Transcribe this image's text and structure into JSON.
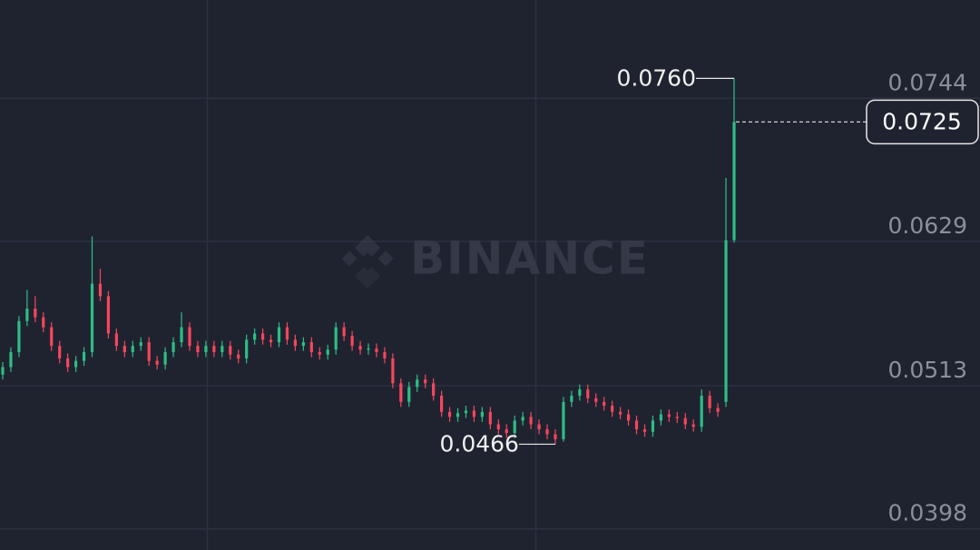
{
  "chart_data": {
    "type": "candlestick",
    "watermark": "BINANCE",
    "up_color": "#2ebd85",
    "down_color": "#f6465d",
    "ylim": [
      0.0381,
      0.0823
    ],
    "yticks": [
      0.0744,
      0.0629,
      0.0513,
      0.0398
    ],
    "grid": true,
    "open": [
      0.0522,
      0.0528,
      0.054,
      0.0565,
      0.0575,
      0.0568,
      0.056,
      0.0545,
      0.0535,
      0.0528,
      0.0533,
      0.054,
      0.0595,
      0.0585,
      0.0555,
      0.0545,
      0.054,
      0.0545,
      0.0548,
      0.0533,
      0.053,
      0.054,
      0.0548,
      0.056,
      0.0545,
      0.054,
      0.0545,
      0.054,
      0.0545,
      0.0538,
      0.0535,
      0.055,
      0.0555,
      0.055,
      0.0548,
      0.056,
      0.055,
      0.0545,
      0.0548,
      0.054,
      0.0538,
      0.0542,
      0.056,
      0.0553,
      0.0545,
      0.0542,
      0.0543,
      0.054,
      0.0535,
      0.0515,
      0.05,
      0.0512,
      0.0518,
      0.0515,
      0.0505,
      0.0492,
      0.0488,
      0.0491,
      0.0493,
      0.0488,
      0.0492,
      0.0482,
      0.0478,
      0.0475,
      0.0485,
      0.0488,
      0.0482,
      0.0478,
      0.0474,
      0.047,
      0.05,
      0.0505,
      0.051,
      0.0503,
      0.05,
      0.0497,
      0.0492,
      0.049,
      0.0485,
      0.0478,
      0.0476,
      0.0485,
      0.049,
      0.0488,
      0.0487,
      0.0482,
      0.048,
      0.0505,
      0.0495,
      0.05,
      0.063
    ],
    "high": [
      0.0532,
      0.0544,
      0.0569,
      0.059,
      0.0585,
      0.0572,
      0.0564,
      0.0549,
      0.0539,
      0.0537,
      0.0544,
      0.0633,
      0.0607,
      0.0589,
      0.0559,
      0.0549,
      0.0549,
      0.0552,
      0.0552,
      0.0537,
      0.0544,
      0.0552,
      0.0572,
      0.0564,
      0.0549,
      0.0549,
      0.0549,
      0.0549,
      0.0549,
      0.0542,
      0.0554,
      0.0559,
      0.0559,
      0.0554,
      0.0564,
      0.0564,
      0.0554,
      0.0552,
      0.0552,
      0.0544,
      0.0546,
      0.0564,
      0.0564,
      0.0557,
      0.0549,
      0.0547,
      0.0547,
      0.0544,
      0.0539,
      0.0519,
      0.0516,
      0.0522,
      0.0522,
      0.0519,
      0.0509,
      0.0496,
      0.0495,
      0.0497,
      0.0497,
      0.0496,
      0.0496,
      0.0486,
      0.0482,
      0.0489,
      0.0492,
      0.0492,
      0.0486,
      0.0482,
      0.0478,
      0.0504,
      0.0509,
      0.0514,
      0.0514,
      0.0507,
      0.0504,
      0.0501,
      0.0496,
      0.0494,
      0.0489,
      0.0482,
      0.0489,
      0.0494,
      0.0494,
      0.0492,
      0.0491,
      0.0486,
      0.051,
      0.0509,
      0.0499,
      0.068,
      0.076
    ],
    "low": [
      0.0518,
      0.0524,
      0.0536,
      0.0561,
      0.0564,
      0.0556,
      0.0541,
      0.0531,
      0.0524,
      0.0524,
      0.0529,
      0.0536,
      0.0581,
      0.0551,
      0.0541,
      0.0536,
      0.0536,
      0.0541,
      0.0529,
      0.0526,
      0.0526,
      0.0536,
      0.0544,
      0.0541,
      0.0536,
      0.0536,
      0.0536,
      0.0536,
      0.0534,
      0.0531,
      0.0531,
      0.0546,
      0.0546,
      0.0544,
      0.0544,
      0.0546,
      0.0541,
      0.0541,
      0.0536,
      0.0534,
      0.0534,
      0.0538,
      0.0549,
      0.0541,
      0.0538,
      0.0538,
      0.0536,
      0.0531,
      0.0511,
      0.0496,
      0.0496,
      0.0508,
      0.0511,
      0.0501,
      0.0488,
      0.0484,
      0.0484,
      0.0487,
      0.0484,
      0.0484,
      0.0478,
      0.0474,
      0.0471,
      0.0471,
      0.0481,
      0.0478,
      0.0474,
      0.047,
      0.0466,
      0.0468,
      0.0496,
      0.0501,
      0.0499,
      0.0496,
      0.0493,
      0.0488,
      0.0486,
      0.0481,
      0.0474,
      0.0472,
      0.0472,
      0.0481,
      0.0484,
      0.0483,
      0.0478,
      0.0476,
      0.0476,
      0.0491,
      0.0488,
      0.0496,
      0.0628
    ],
    "close": [
      0.0528,
      0.054,
      0.0565,
      0.0575,
      0.0568,
      0.056,
      0.0545,
      0.0535,
      0.0528,
      0.0533,
      0.054,
      0.0595,
      0.0585,
      0.0555,
      0.0545,
      0.054,
      0.0545,
      0.0548,
      0.0533,
      0.053,
      0.054,
      0.0548,
      0.056,
      0.0545,
      0.054,
      0.0545,
      0.054,
      0.0545,
      0.0538,
      0.0535,
      0.055,
      0.0555,
      0.055,
      0.0548,
      0.056,
      0.055,
      0.0545,
      0.0548,
      0.054,
      0.0538,
      0.0542,
      0.056,
      0.0553,
      0.0545,
      0.0542,
      0.0543,
      0.054,
      0.0535,
      0.0515,
      0.05,
      0.0512,
      0.0518,
      0.0515,
      0.0505,
      0.0492,
      0.0488,
      0.0491,
      0.0493,
      0.0488,
      0.0492,
      0.0482,
      0.0478,
      0.0475,
      0.0485,
      0.0488,
      0.0482,
      0.0478,
      0.0474,
      0.047,
      0.05,
      0.0505,
      0.051,
      0.0503,
      0.05,
      0.0497,
      0.0492,
      0.049,
      0.0485,
      0.0478,
      0.0476,
      0.0485,
      0.049,
      0.0488,
      0.0487,
      0.0482,
      0.048,
      0.0505,
      0.0495,
      0.0492,
      0.063,
      0.0725
    ],
    "high_label": {
      "value": 0.076,
      "label": "0.0760"
    },
    "low_label": 0.0466,
    "last_price": 0.0725
  }
}
